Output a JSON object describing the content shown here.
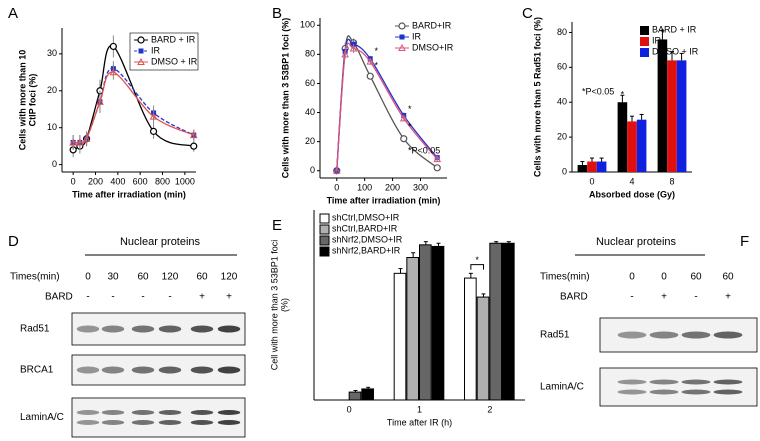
{
  "chart_data": [
    {
      "type": "line",
      "panel": "A",
      "x_label": "Time after irradiation (min)",
      "y_label": [
        "Cells with more than 10",
        "CtIP foci (%)"
      ],
      "x": [
        0,
        60,
        120,
        240,
        360,
        720,
        1080
      ],
      "xlim": [
        -100,
        1100
      ],
      "xticks": [
        0,
        200,
        400,
        600,
        800,
        1000
      ],
      "ylim": [
        -2,
        37
      ],
      "yticks": [
        0,
        10,
        20,
        30
      ],
      "legend": "upper right",
      "series": [
        {
          "name": "BARD + IR",
          "color": "#000000",
          "marker": "circle",
          "dash": false,
          "values": [
            4,
            5,
            7,
            20,
            32,
            9,
            5
          ],
          "errors": [
            2,
            2,
            2,
            3,
            3,
            2,
            1.5
          ]
        },
        {
          "name": "IR",
          "color": "#2233cc",
          "marker": "square",
          "dash": true,
          "values": [
            6,
            6,
            7,
            17,
            26,
            14,
            8
          ],
          "errors": [
            2,
            2,
            2,
            3,
            2,
            2,
            1.5
          ]
        },
        {
          "name": "DMSO + IR",
          "color": "#e05050",
          "marker": "triangle",
          "dash": false,
          "values": [
            6,
            6,
            7,
            17,
            25,
            13,
            8
          ],
          "errors": [
            2,
            2,
            2,
            3,
            2,
            2,
            1.5
          ]
        }
      ]
    },
    {
      "type": "line",
      "panel": "B",
      "x_label": "Time after irradiation (min)",
      "y_label": [
        "Cells with more than 3 53BP1 foci (%)"
      ],
      "x": [
        0,
        30,
        60,
        120,
        240,
        360
      ],
      "xlim": [
        -60,
        395
      ],
      "xticks": [
        0,
        100,
        200,
        300
      ],
      "ylim": [
        -5,
        105
      ],
      "yticks": [
        0,
        20,
        40,
        60,
        80,
        100
      ],
      "legend": "upper right",
      "annotation": "*P<0.05",
      "stars": [
        {
          "x": 120,
          "y": 82,
          "label": "*"
        },
        {
          "x": 120,
          "y": 72,
          "label": "*"
        },
        {
          "x": 240,
          "y": 42,
          "label": "*"
        },
        {
          "x": 240,
          "y": 30,
          "label": "*"
        }
      ],
      "series": [
        {
          "name": "BARD+IR",
          "color": "#555555",
          "marker": "circle",
          "dash": false,
          "values": [
            0,
            84,
            88,
            65,
            22,
            2
          ],
          "errors": [
            1,
            4,
            3,
            2,
            2,
            1
          ]
        },
        {
          "name": "IR",
          "color": "#2233cc",
          "marker": "square",
          "dash": false,
          "values": [
            0,
            82,
            87,
            77,
            38,
            9
          ],
          "errors": [
            1,
            3,
            3,
            2,
            2,
            2
          ]
        },
        {
          "name": "DMSO+IR",
          "color": "#e05080",
          "marker": "triangle",
          "dash": false,
          "values": [
            0,
            80,
            84,
            75,
            36,
            8
          ],
          "errors": [
            1,
            3,
            3,
            2,
            2,
            2
          ]
        }
      ]
    },
    {
      "type": "bar",
      "panel": "C",
      "x_label": "Absorbed dose (Gy)",
      "y_label": [
        "Cells with more than 5 Rad51 foci (%)"
      ],
      "categories": [
        "0",
        "4",
        "8"
      ],
      "ylim": [
        0,
        86
      ],
      "yticks": [
        0,
        20,
        40,
        60,
        80
      ],
      "legend": "upper right",
      "annotation": "*P<0.05",
      "stars": [
        {
          "x": "4",
          "y": 44,
          "label": "*"
        },
        {
          "x": "8",
          "y": 80,
          "label": "*"
        }
      ],
      "series": [
        {
          "name": "BARD + IR",
          "color": "#000000",
          "values": [
            4,
            40,
            76
          ],
          "errors": [
            2,
            4,
            5
          ]
        },
        {
          "name": "IR",
          "color": "#e01010",
          "values": [
            6,
            29,
            64
          ],
          "errors": [
            2,
            3,
            5
          ]
        },
        {
          "name": "DMSO + IR",
          "color": "#1020e0",
          "values": [
            6,
            30,
            64
          ],
          "errors": [
            2,
            3,
            4
          ]
        }
      ]
    },
    {
      "type": "bar",
      "panel": "E",
      "x_label": "Time after IR (h)",
      "y_label": [
        "Cell with more than 3 53BP1 foci",
        "(%)"
      ],
      "categories": [
        "0",
        "1",
        "2"
      ],
      "ylim": [
        0,
        120
      ],
      "legend": "upper left",
      "edgecolor": "#000000",
      "stars": [
        {
          "x": "2",
          "y": 88,
          "label": "*"
        }
      ],
      "series": [
        {
          "name": "shCtrl,DMSO+IR",
          "color": "#ffffff",
          "values": [
            0,
            80,
            77
          ],
          "errors": [
            0,
            3,
            3
          ]
        },
        {
          "name": "shCtrl,BARD+IR",
          "color": "#b0b0b0",
          "values": [
            0,
            90,
            65
          ],
          "errors": [
            0,
            3,
            2
          ]
        },
        {
          "name": "shNrf2,DMSO+IR",
          "color": "#666666",
          "values": [
            5,
            98,
            99
          ],
          "errors": [
            1,
            2,
            1
          ]
        },
        {
          "name": "shNrf2,BARD+IR",
          "color": "#000000",
          "values": [
            7,
            97,
            99
          ],
          "errors": [
            1,
            2,
            1
          ]
        }
      ]
    }
  ],
  "blots": [
    {
      "panel": "D",
      "header": "Nuclear proteins",
      "row_labels": [
        "Times(min)",
        "BARD"
      ],
      "times": [
        "0",
        "30",
        "60",
        "120",
        "60",
        "120"
      ],
      "bard": [
        "-",
        "-",
        "-",
        "-",
        "+",
        "+"
      ],
      "proteins": [
        "Rad51",
        "BRCA1",
        "LaminA/C"
      ]
    },
    {
      "panel": "F",
      "header": "Nuclear proteins",
      "row_labels": [
        "Times(min)",
        "BARD"
      ],
      "times": [
        "0",
        "0",
        "60",
        "60"
      ],
      "bard": [
        "-",
        "+",
        "-",
        "+"
      ],
      "proteins": [
        "Rad51",
        "LaminA/C"
      ]
    }
  ]
}
